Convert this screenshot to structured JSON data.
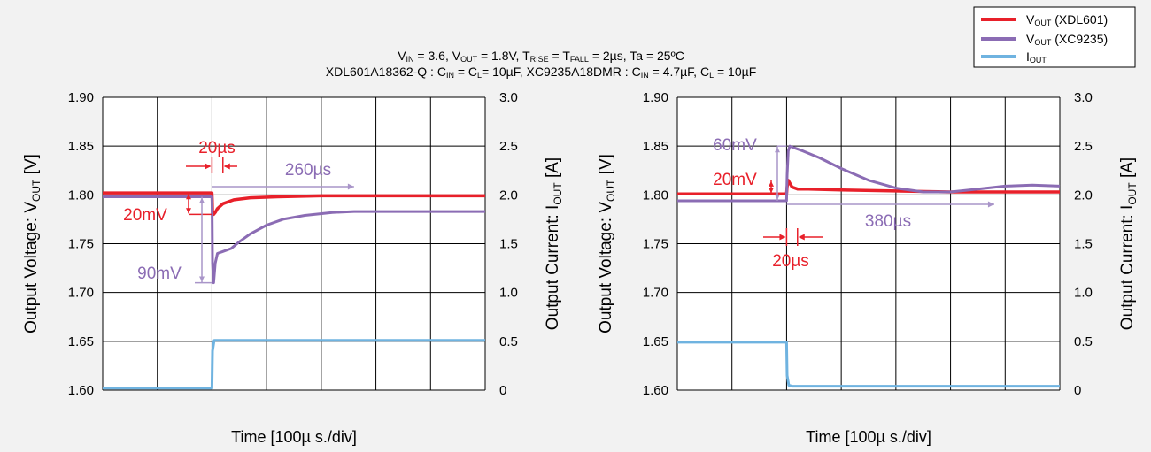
{
  "colors": {
    "xdl601": "#e8202a",
    "xc9235": "#8b6cb4",
    "iout": "#6fb3e0",
    "grid": "#000000",
    "annot_red": "#e8202a",
    "annot_purple": "#8b6cb4",
    "annot_line": "#a995c9"
  },
  "legend": {
    "items": [
      {
        "main": "V",
        "sub": "OUT",
        "tail": " (XDL601)",
        "color_key": "xdl601"
      },
      {
        "main": "V",
        "sub": "OUT",
        "tail": " (XC9235)",
        "color_key": "xc9235"
      },
      {
        "main": "I",
        "sub": "OUT",
        "tail": "",
        "color_key": "iout"
      }
    ]
  },
  "conditions": {
    "line1": [
      {
        "t": "V"
      },
      {
        "s": "IN"
      },
      {
        "t": " = 3.6, V"
      },
      {
        "s": "OUT"
      },
      {
        "t": " = 1.8V, T"
      },
      {
        "s": "RISE"
      },
      {
        "t": " = T"
      },
      {
        "s": "FALL"
      },
      {
        "t": " = 2µs, Ta = 25ºC"
      }
    ],
    "line2": [
      {
        "t": "XDL601A18362-Q : C"
      },
      {
        "s": "IN"
      },
      {
        "t": " = C"
      },
      {
        "s": "L"
      },
      {
        "t": "= 10µF, XC9235A18DMR : C"
      },
      {
        "s": "IN"
      },
      {
        "t": " = 4.7µF, C"
      },
      {
        "s": "L"
      },
      {
        "t": " = 10µF"
      }
    ]
  },
  "chart_data": [
    {
      "type": "line",
      "xlabel": "Time [100µ s./div]",
      "ylabel_left": {
        "main": "Output Voltage: V",
        "sub": "OUT",
        "tail": " [V]"
      },
      "ylabel_right": {
        "main": "Output Current: I",
        "sub": "OUT",
        "tail": " [A]"
      },
      "ylim_left": [
        1.6,
        1.9
      ],
      "ylim_right": [
        0,
        3.0
      ],
      "xlim": [
        0,
        700
      ],
      "x_divisions": 7,
      "yticks_left": [
        "1.60",
        "1.65",
        "1.70",
        "1.75",
        "1.80",
        "1.85",
        "1.90"
      ],
      "yticks_right": [
        "0",
        "0.5",
        "1.0",
        "1.5",
        "2.0",
        "2.5",
        "3.0"
      ],
      "grid": true,
      "series": [
        {
          "color_key": "xdl601",
          "axis": "left",
          "x": [
            0,
            200,
            200.5,
            201,
            203,
            206,
            210,
            220,
            240,
            270,
            320,
            400,
            500,
            700
          ],
          "y": [
            1.802,
            1.802,
            1.795,
            1.783,
            1.78,
            1.782,
            1.786,
            1.791,
            1.795,
            1.797,
            1.798,
            1.799,
            1.799,
            1.799
          ]
        },
        {
          "color_key": "xc9235",
          "axis": "left",
          "x": [
            0,
            200,
            200.5,
            201,
            203,
            206,
            210,
            220,
            235,
            250,
            270,
            300,
            330,
            370,
            420,
            460,
            500,
            700
          ],
          "y": [
            1.798,
            1.798,
            1.77,
            1.73,
            1.71,
            1.73,
            1.74,
            1.742,
            1.745,
            1.752,
            1.76,
            1.769,
            1.775,
            1.779,
            1.782,
            1.783,
            1.783,
            1.783
          ]
        },
        {
          "color_key": "iout",
          "axis": "right",
          "x": [
            0,
            200,
            201,
            204,
            700
          ],
          "y": [
            0.02,
            0.02,
            0.4,
            0.51,
            0.51
          ]
        }
      ],
      "annotations": [
        {
          "text": "20µs",
          "color_key": "annot_red"
        },
        {
          "text": "260µs",
          "color_key": "annot_purple"
        },
        {
          "text": "20mV",
          "color_key": "annot_red"
        },
        {
          "text": "90mV",
          "color_key": "annot_purple"
        }
      ]
    },
    {
      "type": "line",
      "xlabel": "Time [100µ s./div]",
      "ylabel_left": {
        "main": "Output Voltage: V",
        "sub": "OUT",
        "tail": " [V]"
      },
      "ylabel_right": {
        "main": "Output Current: I",
        "sub": "OUT",
        "tail": " [A]"
      },
      "ylim_left": [
        1.6,
        1.9
      ],
      "ylim_right": [
        0,
        3.0
      ],
      "xlim": [
        0,
        700
      ],
      "x_divisions": 7,
      "yticks_left": [
        "1.60",
        "1.65",
        "1.70",
        "1.75",
        "1.80",
        "1.85",
        "1.90"
      ],
      "yticks_right": [
        "0",
        "0.5",
        "1.0",
        "1.5",
        "2.0",
        "2.5",
        "3.0"
      ],
      "grid": true,
      "series": [
        {
          "color_key": "xdl601",
          "axis": "left",
          "x": [
            0,
            200,
            201,
            203,
            206,
            210,
            220,
            240,
            300,
            400,
            500,
            700
          ],
          "y": [
            1.801,
            1.801,
            1.808,
            1.815,
            1.812,
            1.808,
            1.806,
            1.806,
            1.805,
            1.804,
            1.803,
            1.803
          ]
        },
        {
          "color_key": "xc9235",
          "axis": "left",
          "x": [
            0,
            200,
            201,
            203,
            206,
            210,
            230,
            260,
            300,
            350,
            400,
            450,
            500,
            550,
            600,
            650,
            700
          ],
          "y": [
            1.794,
            1.794,
            1.82,
            1.845,
            1.85,
            1.849,
            1.845,
            1.838,
            1.827,
            1.815,
            1.807,
            1.803,
            1.803,
            1.806,
            1.809,
            1.81,
            1.809
          ]
        },
        {
          "color_key": "iout",
          "axis": "right",
          "x": [
            0,
            200,
            201,
            204,
            210,
            700
          ],
          "y": [
            0.49,
            0.49,
            0.15,
            0.05,
            0.04,
            0.04
          ]
        }
      ],
      "annotations": [
        {
          "text": "60mV",
          "color_key": "annot_purple"
        },
        {
          "text": "20mV",
          "color_key": "annot_red"
        },
        {
          "text": "380µs",
          "color_key": "annot_purple"
        },
        {
          "text": "20µs",
          "color_key": "annot_red"
        }
      ]
    }
  ]
}
